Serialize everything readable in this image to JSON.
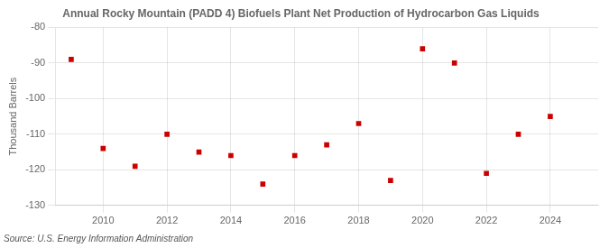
{
  "chart_data": {
    "type": "scatter",
    "title": "Annual Rocky Mountain (PADD 4) Biofuels Plant Net Production of Hydrocarbon Gas Liquids",
    "ylabel": "Thousand Barrels",
    "annotation": "Source: U.S. Energy Information Administration",
    "x": [
      2009,
      2010,
      2011,
      2012,
      2013,
      2014,
      2015,
      2016,
      2017,
      2018,
      2019,
      2020,
      2021,
      2022,
      2023,
      2024
    ],
    "values": [
      -89,
      -114,
      -119,
      -110,
      -115,
      -116,
      -124,
      -116,
      -113,
      -107,
      -123,
      -86,
      -90,
      -121,
      -110,
      -105
    ],
    "color": "#cc0000",
    "marker": "square",
    "xlim": [
      2008.5,
      2025.5
    ],
    "ylim": [
      -130,
      -80
    ],
    "yticks": [
      -80,
      -90,
      -100,
      -110,
      -120,
      -130
    ],
    "xticks": [
      2010,
      2012,
      2014,
      2016,
      2018,
      2020,
      2022,
      2024
    ],
    "grid": true
  }
}
